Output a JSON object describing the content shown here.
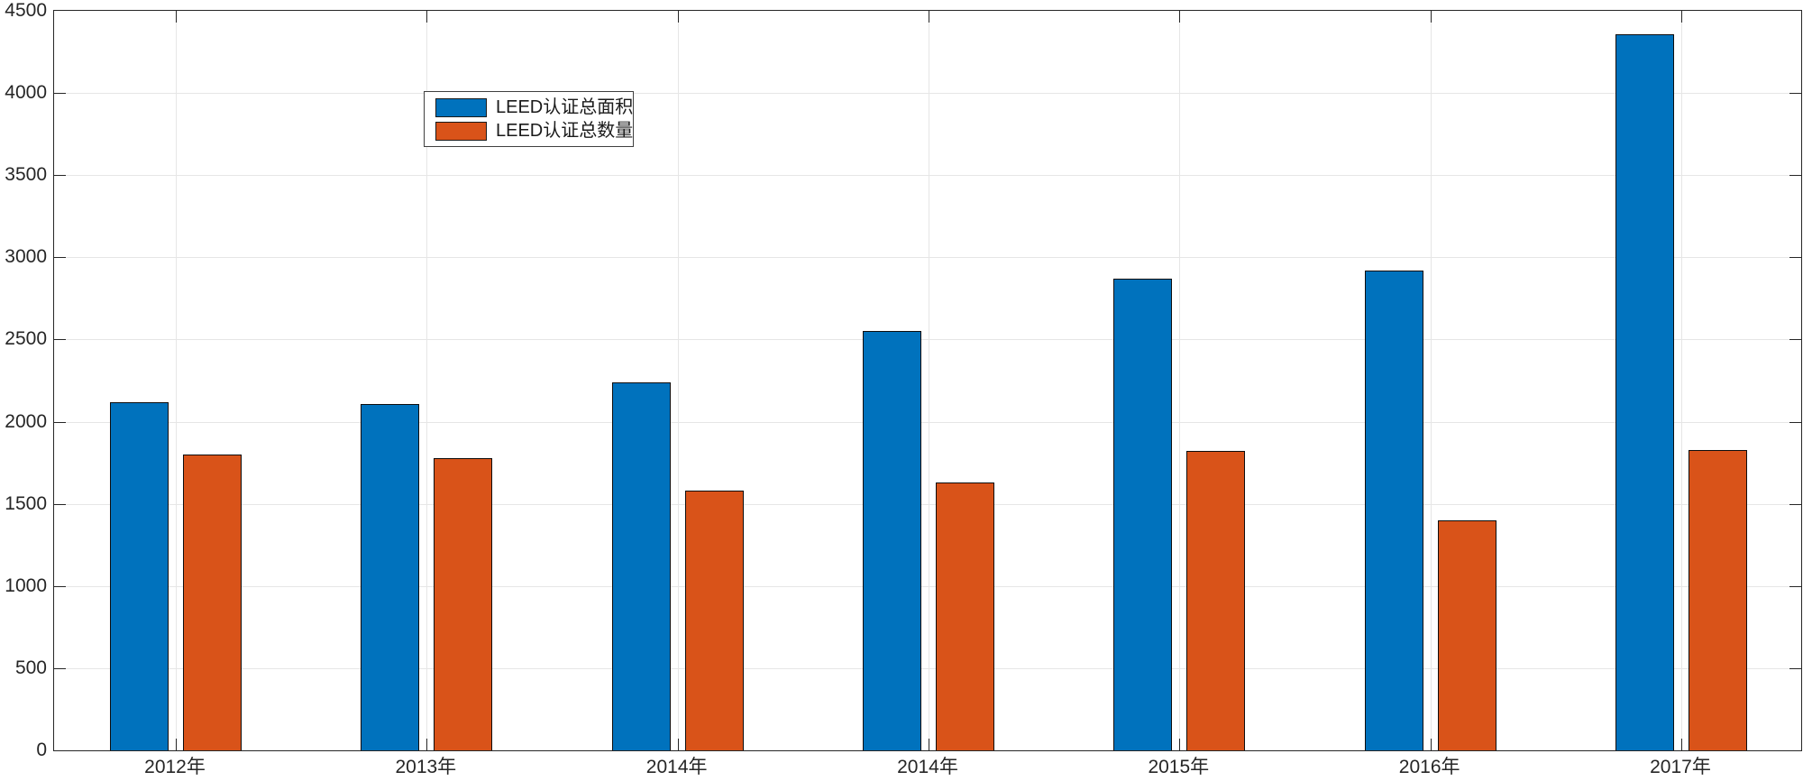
{
  "window": {
    "background": "#ffffff"
  },
  "chart_data": {
    "type": "bar",
    "title": "",
    "xlabel": "",
    "ylabel": "",
    "categories": [
      "2012年",
      "2013年",
      "2014年",
      "2014年",
      "2015年",
      "2016年",
      "2017年"
    ],
    "series": [
      {
        "name": "LEED认证总面积",
        "color": "#0072BD",
        "values": [
          2120,
          2110,
          2240,
          2550,
          2870,
          2920,
          4360
        ]
      },
      {
        "name": "LEED认证总数量",
        "color": "#D95319",
        "values": [
          1800,
          1780,
          1580,
          1630,
          1820,
          1400,
          1830
        ]
      }
    ],
    "ylim": [
      0,
      4500
    ],
    "yticks": [
      0,
      500,
      1000,
      1500,
      2000,
      2500,
      3000,
      3500,
      4000,
      4500
    ],
    "grid": "on",
    "legend": {
      "position": "inside-upper-left",
      "border": true
    },
    "colors": {
      "axis": "#262626",
      "grid": "#e6e6e6",
      "tick_label": "#262626",
      "bar_edge": "#0d0d0d",
      "plot_background": "#ffffff"
    }
  }
}
